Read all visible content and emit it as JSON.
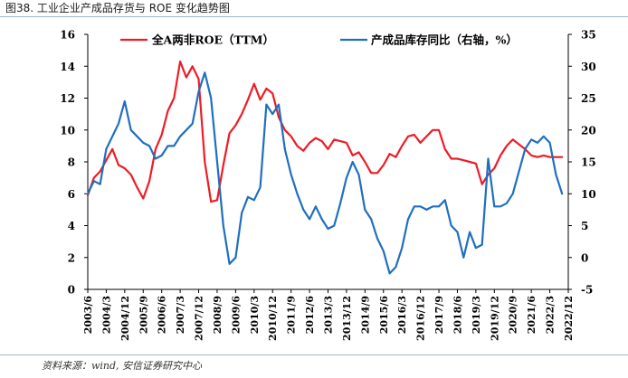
{
  "figure": {
    "title": "图38. 工业企业产成品存货与 ROE 变化趋势图",
    "source": "资料来源：wind, 安信证券研究中心"
  },
  "colors": {
    "roe": "#ee1c25",
    "inventory": "#1f6fbf",
    "axis": "#000000"
  },
  "chart_data": {
    "type": "line",
    "x_ticks": [
      "2003/6",
      "2004/3",
      "2004/12",
      "2005/9",
      "2006/6",
      "2007/3",
      "2007/12",
      "2008/9",
      "2009/6",
      "2010/3",
      "2010/12",
      "2011/9",
      "2012/6",
      "2013/3",
      "2013/12",
      "2014/9",
      "2015/6",
      "2016/3",
      "2016/12",
      "2017/9",
      "2018/6",
      "2019/3",
      "2019/12",
      "2020/9",
      "2021/6",
      "2022/3",
      "2022/12"
    ],
    "y_left": {
      "min": 0,
      "max": 16,
      "ticks": [
        0,
        2,
        4,
        6,
        8,
        10,
        12,
        14,
        16
      ]
    },
    "y_right": {
      "min": -5,
      "max": 35,
      "ticks": [
        -5,
        0,
        5,
        10,
        15,
        20,
        25,
        30,
        35
      ]
    },
    "legend": {
      "position": "top"
    },
    "series": [
      {
        "name": "全A两非ROE（TTM）",
        "axis": "left",
        "x": [
          "2003/6",
          "2003/9",
          "2003/12",
          "2004/3",
          "2004/6",
          "2004/9",
          "2004/12",
          "2005/3",
          "2005/6",
          "2005/9",
          "2005/12",
          "2006/3",
          "2006/6",
          "2006/9",
          "2006/12",
          "2007/3",
          "2007/6",
          "2007/9",
          "2007/12",
          "2008/3",
          "2008/6",
          "2008/9",
          "2008/12",
          "2009/3",
          "2009/6",
          "2009/9",
          "2009/12",
          "2010/3",
          "2010/6",
          "2010/9",
          "2010/12",
          "2011/3",
          "2011/6",
          "2011/9",
          "2011/12",
          "2012/3",
          "2012/6",
          "2012/9",
          "2012/12",
          "2013/3",
          "2013/6",
          "2013/9",
          "2013/12",
          "2014/3",
          "2014/6",
          "2014/9",
          "2014/12",
          "2015/3",
          "2015/6",
          "2015/9",
          "2015/12",
          "2016/3",
          "2016/6",
          "2016/9",
          "2016/12",
          "2017/3",
          "2017/6",
          "2017/9",
          "2017/12",
          "2018/3",
          "2018/6",
          "2018/9",
          "2018/12",
          "2019/3",
          "2019/6",
          "2019/9",
          "2019/12",
          "2020/3",
          "2020/6",
          "2020/9",
          "2020/12",
          "2021/3",
          "2021/6",
          "2021/9",
          "2021/12",
          "2022/3",
          "2022/6",
          "2022/9"
        ],
        "values": [
          5.9,
          7.0,
          7.4,
          8.1,
          8.8,
          7.8,
          7.6,
          7.2,
          6.4,
          5.7,
          6.8,
          8.8,
          9.7,
          11.2,
          12.0,
          14.3,
          13.3,
          14.0,
          13.2,
          8.0,
          5.5,
          5.6,
          7.8,
          9.8,
          10.3,
          11.0,
          11.9,
          12.9,
          11.9,
          12.6,
          12.3,
          10.8,
          10.0,
          9.6,
          9.0,
          8.7,
          9.2,
          9.5,
          9.3,
          8.8,
          9.4,
          9.3,
          9.2,
          8.4,
          8.6,
          8.0,
          7.3,
          7.3,
          7.8,
          8.5,
          8.3,
          9.0,
          9.6,
          9.7,
          9.2,
          9.6,
          10.0,
          10.0,
          8.8,
          8.2,
          8.2,
          8.1,
          8.0,
          7.9,
          6.6,
          7.2,
          7.6,
          8.4,
          9.0,
          9.4,
          9.1,
          8.8,
          8.4,
          8.3,
          8.4,
          8.3,
          8.3,
          8.3
        ]
      },
      {
        "name": "产成品库存同比（右轴，%）",
        "axis": "right",
        "x": [
          "2003/6",
          "2003/9",
          "2003/12",
          "2004/3",
          "2004/6",
          "2004/9",
          "2004/12",
          "2005/3",
          "2005/6",
          "2005/9",
          "2005/12",
          "2006/3",
          "2006/6",
          "2006/9",
          "2006/12",
          "2007/3",
          "2007/6",
          "2007/9",
          "2007/12",
          "2008/3",
          "2008/6",
          "2008/9",
          "2008/12",
          "2009/3",
          "2009/6",
          "2009/9",
          "2009/12",
          "2010/3",
          "2010/6",
          "2010/9",
          "2010/12",
          "2011/3",
          "2011/6",
          "2011/9",
          "2011/12",
          "2012/3",
          "2012/6",
          "2012/9",
          "2012/12",
          "2013/3",
          "2013/6",
          "2013/9",
          "2013/12",
          "2014/3",
          "2014/6",
          "2014/9",
          "2014/12",
          "2015/3",
          "2015/6",
          "2015/9",
          "2015/12",
          "2016/3",
          "2016/6",
          "2016/9",
          "2016/12",
          "2017/3",
          "2017/6",
          "2017/9",
          "2017/12",
          "2018/3",
          "2018/6",
          "2018/9",
          "2018/12",
          "2019/3",
          "2019/6",
          "2019/9",
          "2019/12",
          "2020/3",
          "2020/6",
          "2020/9",
          "2020/12",
          "2021/3",
          "2021/6",
          "2021/9",
          "2021/12",
          "2022/3",
          "2022/6",
          "2022/9"
        ],
        "values": [
          10.0,
          12.0,
          11.5,
          17.0,
          19.0,
          21.0,
          24.5,
          20.0,
          19.0,
          18.0,
          17.5,
          15.5,
          16.0,
          17.5,
          17.5,
          19.0,
          20.0,
          21.0,
          26.0,
          29.0,
          25.0,
          15.0,
          5.0,
          -1.0,
          0.0,
          7.0,
          9.5,
          9.0,
          11.0,
          24.0,
          22.5,
          24.0,
          17.0,
          13.0,
          10.0,
          7.5,
          6.0,
          8.0,
          6.0,
          4.5,
          5.0,
          8.5,
          12.5,
          15.0,
          13.0,
          7.5,
          6.0,
          3.0,
          1.0,
          -2.5,
          -1.5,
          1.5,
          6.0,
          8.0,
          8.0,
          7.5,
          8.0,
          8.0,
          9.0,
          5.0,
          4.0,
          0.0,
          4.0,
          1.5,
          2.0,
          15.5,
          8.0,
          8.0,
          8.5,
          10.0,
          13.5,
          17.0,
          18.5,
          18.0,
          19.0,
          18.0,
          13.0,
          10.0
        ]
      }
    ]
  }
}
